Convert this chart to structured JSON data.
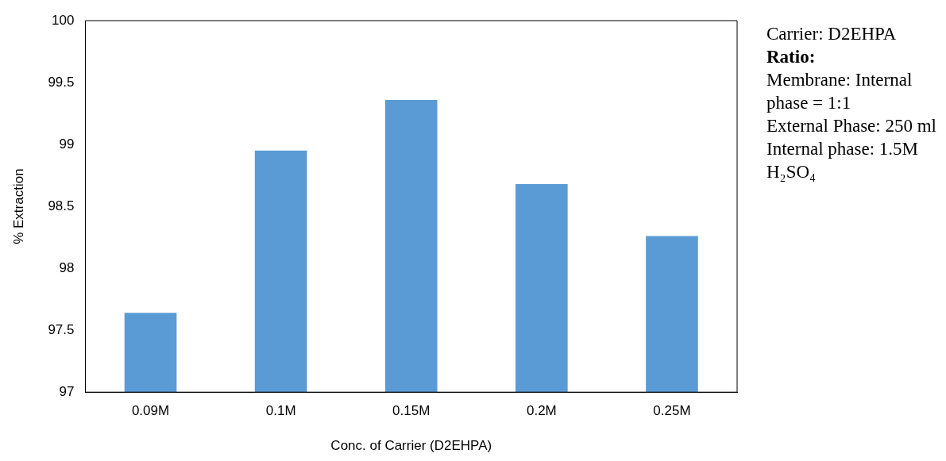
{
  "chart_data": {
    "type": "bar",
    "xlabel": "Conc. of Carrier (D2EHPA)",
    "ylabel": "% Extraction",
    "categories": [
      "0.09M",
      "0.1M",
      "0.15M",
      "0.2M",
      "0.25M"
    ],
    "values": [
      97.64,
      98.95,
      99.36,
      98.68,
      98.26
    ],
    "color": "#5b9bd5",
    "ylim": [
      97,
      100
    ],
    "yticks": [
      97,
      97.5,
      98,
      98.5,
      99,
      99.5,
      100
    ],
    "grid": false,
    "legend": false,
    "annotations": [
      "Carrier: D2EHPA",
      "Ratio:",
      "Membrane: Internal phase = 1:1",
      "External Phase: 250 ml",
      "Internal phase: 1.5M H₂SO₄"
    ]
  }
}
